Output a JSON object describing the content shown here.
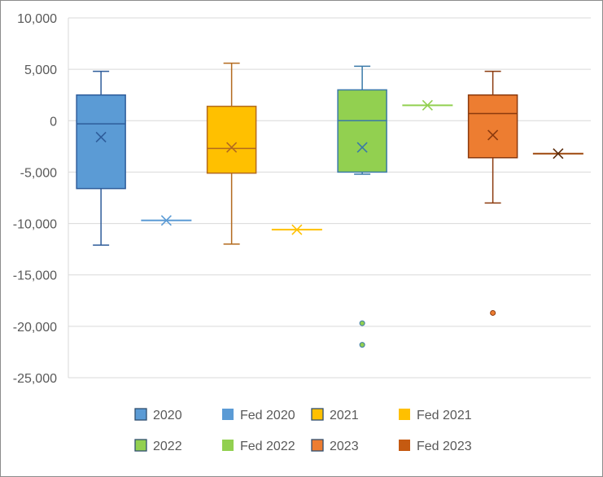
{
  "chart_data": {
    "type": "boxplot",
    "title": "",
    "xlabel": "",
    "ylabel": "",
    "ylim": [
      -25000,
      10000
    ],
    "yticks": [
      {
        "value": 10000,
        "label": "10,000"
      },
      {
        "value": 5000,
        "label": "5,000"
      },
      {
        "value": 0,
        "label": "0"
      },
      {
        "value": -5000,
        "label": "-5,000"
      },
      {
        "value": -10000,
        "label": "-10,000"
      },
      {
        "value": -15000,
        "label": "-15,000"
      },
      {
        "value": -20000,
        "label": "-20,000"
      },
      {
        "value": -25000,
        "label": "-25,000"
      }
    ],
    "grid": true,
    "legend_position": "bottom",
    "boxes": [
      {
        "name": "2020",
        "color": "#5B9BD5",
        "edge": "#2E5C9A",
        "min": -12100,
        "q1": -6600,
        "median": -300,
        "q3": 2500,
        "max": 4800,
        "mean": -1600,
        "outliers": []
      },
      {
        "name": "2021",
        "color": "#FFC000",
        "edge": "#B36A1E",
        "min": -12000,
        "q1": -5100,
        "median": -2700,
        "q3": 1400,
        "max": 5600,
        "mean": -2600,
        "outliers": []
      },
      {
        "name": "2022",
        "color": "#92D050",
        "edge": "#3A79A8",
        "min": -5200,
        "q1": -5000,
        "median": 0,
        "q3": 3000,
        "max": 5300,
        "mean": -2600,
        "outliers": [
          -19700,
          -21800
        ]
      },
      {
        "name": "2023",
        "color": "#ED7D31",
        "edge": "#8B3A0E",
        "min": -8000,
        "q1": -3600,
        "median": 700,
        "q3": 2500,
        "max": 4800,
        "mean": -1400,
        "outliers": [
          -18700
        ]
      }
    ],
    "single_points": [
      {
        "name": "Fed 2020",
        "color": "#5B9BD5",
        "value": -9700
      },
      {
        "name": "Fed 2021",
        "color": "#FFC000",
        "value": -10600
      },
      {
        "name": "Fed 2022",
        "color": "#92D050",
        "value": 1500
      },
      {
        "name": "Fed 2023",
        "color": "#9E480E",
        "value": -3200
      }
    ],
    "legend": [
      {
        "label": "2020",
        "color": "#5B9BD5",
        "style": "box"
      },
      {
        "label": "Fed 2020",
        "color": "#5B9BD5",
        "style": "solid"
      },
      {
        "label": "2021",
        "color": "#FFC000",
        "style": "box"
      },
      {
        "label": "Fed 2021",
        "color": "#FFC000",
        "style": "solid"
      },
      {
        "label": "2022",
        "color": "#92D050",
        "style": "box"
      },
      {
        "label": "Fed 2022",
        "color": "#92D050",
        "style": "solid"
      },
      {
        "label": "2023",
        "color": "#ED7D31",
        "style": "box"
      },
      {
        "label": "Fed 2023",
        "color": "#C55A11",
        "style": "solid"
      }
    ]
  }
}
